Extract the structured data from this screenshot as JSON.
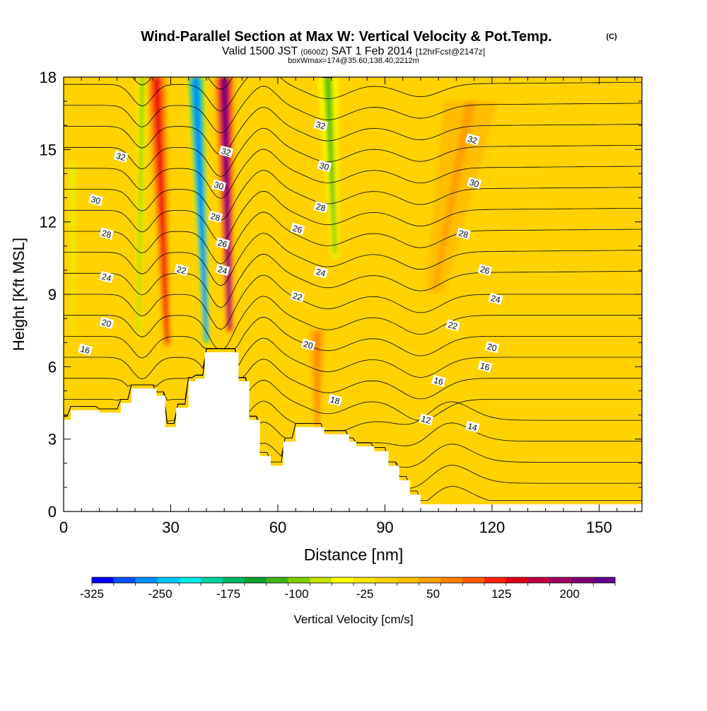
{
  "chart_data": {
    "type": "heatmap",
    "title": {
      "main": "Wind-Parallel Section at Max W: Vertical Velocity & Pot.Temp.",
      "copyright": "(C)",
      "line2_a": "Valid 1500 JST",
      "line2_b": "(0600Z)",
      "line2_c": "SAT 1 Feb 2014",
      "line2_d": "[12hrFcst@2147z]",
      "line3": "boxWmax=174@35.60,138.40,2212m"
    },
    "xlabel": "Distance [nm]",
    "ylabel": "Height [Kft MSL]",
    "xlim": [
      0,
      162
    ],
    "ylim": [
      0,
      18
    ],
    "x_ticks": [
      0,
      30,
      60,
      90,
      120,
      150
    ],
    "y_ticks": [
      0,
      3,
      6,
      9,
      12,
      15,
      18
    ],
    "colorbar": {
      "label": "Vertical Velocity [cm/s]",
      "range": [
        -325,
        250
      ],
      "tick_labels": [
        "-325",
        "-250",
        "-175",
        "-100",
        "-25",
        "50",
        "125",
        "200"
      ],
      "colors": [
        "#0000ff",
        "#0050ff",
        "#0090ff",
        "#00c8ff",
        "#00eeee",
        "#00d4a0",
        "#00b860",
        "#10a030",
        "#40b418",
        "#80d000",
        "#c8e400",
        "#ffff00",
        "#ffe600",
        "#ffd200",
        "#ffbe00",
        "#ffa000",
        "#ff8000",
        "#ff5a00",
        "#ff2000",
        "#e00018",
        "#c00040",
        "#a00060",
        "#800070",
        "#600090"
      ]
    },
    "terrain_profile_kft": [
      [
        0,
        3.8
      ],
      [
        2,
        3.8
      ],
      [
        2,
        4.2
      ],
      [
        10,
        4.2
      ],
      [
        10,
        4.1
      ],
      [
        16,
        4.1
      ],
      [
        16,
        4.5
      ],
      [
        19,
        4.5
      ],
      [
        19,
        5.1
      ],
      [
        26,
        5.1
      ],
      [
        26,
        4.8
      ],
      [
        28.5,
        4.8
      ],
      [
        28.5,
        3.5
      ],
      [
        31.5,
        3.5
      ],
      [
        31.5,
        4.3
      ],
      [
        35,
        4.3
      ],
      [
        35,
        5.4
      ],
      [
        37,
        5.4
      ],
      [
        37,
        5.5
      ],
      [
        39.5,
        5.5
      ],
      [
        39.5,
        6.6
      ],
      [
        49,
        6.6
      ],
      [
        49,
        5.4
      ],
      [
        52,
        5.4
      ],
      [
        52,
        3.8
      ],
      [
        55,
        3.8
      ],
      [
        55,
        2.3
      ],
      [
        58,
        2.3
      ],
      [
        58,
        1.9
      ],
      [
        61.5,
        1.9
      ],
      [
        61.5,
        2.9
      ],
      [
        65,
        2.9
      ],
      [
        65,
        3.5
      ],
      [
        73,
        3.5
      ],
      [
        73,
        3.2
      ],
      [
        80,
        3.2
      ],
      [
        80,
        2.9
      ],
      [
        82,
        2.9
      ],
      [
        82,
        2.7
      ],
      [
        87,
        2.7
      ],
      [
        87,
        2.5
      ],
      [
        91,
        2.5
      ],
      [
        91,
        1.9
      ],
      [
        94,
        1.9
      ],
      [
        94,
        1.3
      ],
      [
        97,
        1.3
      ],
      [
        97,
        0.7
      ],
      [
        100,
        0.7
      ],
      [
        100,
        0.3
      ],
      [
        162,
        0.3
      ]
    ],
    "w_features": [
      {
        "x": 29,
        "y0": 6.8,
        "y1": 18,
        "tilt_nm": -3,
        "width_nm": 6,
        "peak_cms": 150
      },
      {
        "x": 40,
        "y0": 6.9,
        "y1": 18,
        "tilt_nm": -3,
        "width_nm": 5.5,
        "peak_cms": -300
      },
      {
        "x": 46.5,
        "y0": 7.4,
        "y1": 18,
        "tilt_nm": -1.5,
        "width_nm": 5.5,
        "peak_cms": 240
      },
      {
        "x": 21,
        "y0": 7.2,
        "y1": 18,
        "tilt_nm": 1,
        "width_nm": 3,
        "peak_cms": -110
      },
      {
        "x": 2.5,
        "y0": 7.2,
        "y1": 14.5,
        "tilt_nm": 0,
        "width_nm": 2,
        "peak_cms": -80
      },
      {
        "x": 76,
        "y0": 10.5,
        "y1": 18,
        "tilt_nm": -2,
        "width_nm": 6,
        "peak_cms": -115
      },
      {
        "x": 104,
        "y0": 9,
        "y1": 17,
        "tilt_nm": 10,
        "width_nm": 18,
        "peak_cms": 40
      },
      {
        "x": 71,
        "y0": 3.5,
        "y1": 7.5,
        "tilt_nm": 0,
        "width_nm": 6,
        "peak_cms": 60
      }
    ],
    "isentropes": {
      "label": "Pot.Temp.",
      "min": 12,
      "max": 33,
      "step": 1,
      "labels": [
        {
          "text": "32",
          "x": 16,
          "y": 14.7
        },
        {
          "text": "30",
          "x": 9,
          "y": 12.9
        },
        {
          "text": "28",
          "x": 12,
          "y": 11.5
        },
        {
          "text": "24",
          "x": 12,
          "y": 9.7
        },
        {
          "text": "20",
          "x": 12,
          "y": 7.8
        },
        {
          "text": "16",
          "x": 6,
          "y": 6.7
        },
        {
          "text": "22",
          "x": 33,
          "y": 10.0
        },
        {
          "text": "32",
          "x": 45.5,
          "y": 14.9
        },
        {
          "text": "30",
          "x": 43.5,
          "y": 13.5
        },
        {
          "text": "28",
          "x": 42.5,
          "y": 12.2
        },
        {
          "text": "26",
          "x": 44.5,
          "y": 11.1
        },
        {
          "text": "24",
          "x": 44.5,
          "y": 10.0
        },
        {
          "text": "32",
          "x": 72,
          "y": 16.0
        },
        {
          "text": "30",
          "x": 73,
          "y": 14.3
        },
        {
          "text": "28",
          "x": 72,
          "y": 12.6
        },
        {
          "text": "26",
          "x": 65.5,
          "y": 11.7
        },
        {
          "text": "24",
          "x": 72,
          "y": 9.9
        },
        {
          "text": "22",
          "x": 65.5,
          "y": 8.9
        },
        {
          "text": "20",
          "x": 68.5,
          "y": 6.9
        },
        {
          "text": "18",
          "x": 76,
          "y": 4.6
        },
        {
          "text": "32",
          "x": 114.5,
          "y": 15.4
        },
        {
          "text": "30",
          "x": 115,
          "y": 13.6
        },
        {
          "text": "28",
          "x": 112,
          "y": 11.5
        },
        {
          "text": "26",
          "x": 118,
          "y": 10.0
        },
        {
          "text": "24",
          "x": 121,
          "y": 8.8
        },
        {
          "text": "22",
          "x": 109,
          "y": 7.7
        },
        {
          "text": "20",
          "x": 120,
          "y": 6.8
        },
        {
          "text": "16",
          "x": 118,
          "y": 6.0
        },
        {
          "text": "16",
          "x": 105,
          "y": 5.4
        },
        {
          "text": "12",
          "x": 101.5,
          "y": 3.8
        },
        {
          "text": "14",
          "x": 114.5,
          "y": 3.5
        }
      ]
    }
  }
}
